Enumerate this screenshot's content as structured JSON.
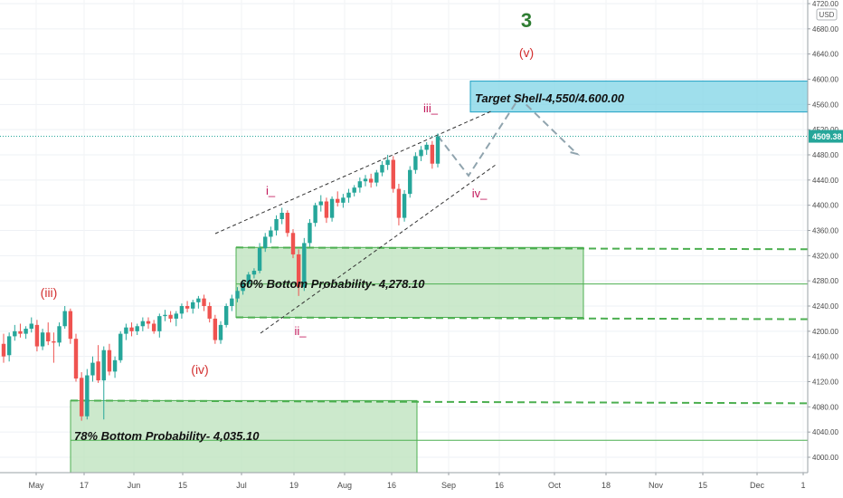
{
  "chart_data": {
    "type": "candlestick",
    "symbol_currency": "USD",
    "y_ticks": [
      4000,
      4040,
      4080,
      4120,
      4160,
      4200,
      4240,
      4280,
      4320,
      4360,
      4400,
      4440,
      4480,
      4520,
      4560,
      4600,
      4640,
      4680,
      4720
    ],
    "y_tick_labels": [
      "4000.00",
      "4040.00",
      "4080.00",
      "4120.00",
      "4160.00",
      "4200.00",
      "4240.00",
      "4280.00",
      "4320.00",
      "4360.00",
      "4400.00",
      "4440.00",
      "4480.00",
      "4520.00",
      "4560.00",
      "4600.00",
      "4640.00",
      "4680.00",
      "4720.00"
    ],
    "x_labels": [
      "May",
      "17",
      "Jun",
      "15",
      "Jul",
      "19",
      "Aug",
      "16",
      "Sep",
      "16",
      "Oct",
      "18",
      "Nov",
      "15",
      "Dec",
      "1"
    ],
    "last_price_label": "4509.38",
    "last_price": 4509.38,
    "wave_labels": {
      "degree_3": "3",
      "wave_v": "(v)",
      "wave_iii_paren": "(iii)",
      "wave_iv_paren": "(iv)",
      "wave_i": "i_",
      "wave_ii": "ii_",
      "wave_iii": "iii_",
      "wave_iv": "iv_"
    },
    "zones": [
      {
        "label": "Target Shell-4,550/4.600.00",
        "high": 4597,
        "low": 4548,
        "color": "#7fd4e6"
      },
      {
        "label": "60% Bottom Probability- 4,278.10",
        "high": 4333,
        "low": 4222,
        "mid": 4275,
        "color": "#bfe3bf"
      },
      {
        "label": "78% Bottom Probability- 4,035.10",
        "high": 4090,
        "low": 3990,
        "mid": 4027,
        "color": "#bfe3bf"
      }
    ],
    "candles": [
      {
        "o": 4180,
        "h": 4196,
        "l": 4150,
        "c": 4160
      },
      {
        "o": 4162,
        "h": 4198,
        "l": 4152,
        "c": 4192
      },
      {
        "o": 4192,
        "h": 4210,
        "l": 4185,
        "c": 4200
      },
      {
        "o": 4200,
        "h": 4212,
        "l": 4190,
        "c": 4196
      },
      {
        "o": 4196,
        "h": 4208,
        "l": 4188,
        "c": 4204
      },
      {
        "o": 4204,
        "h": 4222,
        "l": 4198,
        "c": 4212
      },
      {
        "o": 4210,
        "h": 4218,
        "l": 4168,
        "c": 4176
      },
      {
        "o": 4176,
        "h": 4204,
        "l": 4170,
        "c": 4198
      },
      {
        "o": 4198,
        "h": 4214,
        "l": 4178,
        "c": 4184
      },
      {
        "o": 4184,
        "h": 4198,
        "l": 4150,
        "c": 4182
      },
      {
        "o": 4182,
        "h": 4214,
        "l": 4176,
        "c": 4208
      },
      {
        "o": 4208,
        "h": 4240,
        "l": 4204,
        "c": 4232
      },
      {
        "o": 4232,
        "h": 4236,
        "l": 4180,
        "c": 4188
      },
      {
        "o": 4188,
        "h": 4196,
        "l": 4120,
        "c": 4125
      },
      {
        "o": 4126,
        "h": 4135,
        "l": 4058,
        "c": 4065
      },
      {
        "o": 4065,
        "h": 4140,
        "l": 4060,
        "c": 4130
      },
      {
        "o": 4130,
        "h": 4160,
        "l": 4120,
        "c": 4150
      },
      {
        "o": 4152,
        "h": 4178,
        "l": 4118,
        "c": 4122
      },
      {
        "o": 4122,
        "h": 4176,
        "l": 4060,
        "c": 4170
      },
      {
        "o": 4170,
        "h": 4180,
        "l": 4130,
        "c": 4136
      },
      {
        "o": 4136,
        "h": 4160,
        "l": 4126,
        "c": 4154
      },
      {
        "o": 4154,
        "h": 4200,
        "l": 4150,
        "c": 4196
      },
      {
        "o": 4196,
        "h": 4212,
        "l": 4186,
        "c": 4206
      },
      {
        "o": 4206,
        "h": 4214,
        "l": 4192,
        "c": 4200
      },
      {
        "o": 4200,
        "h": 4212,
        "l": 4194,
        "c": 4208
      },
      {
        "o": 4208,
        "h": 4222,
        "l": 4200,
        "c": 4216
      },
      {
        "o": 4216,
        "h": 4222,
        "l": 4204,
        "c": 4212
      },
      {
        "o": 4212,
        "h": 4218,
        "l": 4196,
        "c": 4200
      },
      {
        "o": 4200,
        "h": 4228,
        "l": 4190,
        "c": 4224
      },
      {
        "o": 4224,
        "h": 4234,
        "l": 4216,
        "c": 4226
      },
      {
        "o": 4226,
        "h": 4232,
        "l": 4214,
        "c": 4220
      },
      {
        "o": 4220,
        "h": 4232,
        "l": 4208,
        "c": 4228
      },
      {
        "o": 4228,
        "h": 4244,
        "l": 4220,
        "c": 4240
      },
      {
        "o": 4240,
        "h": 4248,
        "l": 4230,
        "c": 4236
      },
      {
        "o": 4236,
        "h": 4250,
        "l": 4228,
        "c": 4246
      },
      {
        "o": 4246,
        "h": 4256,
        "l": 4236,
        "c": 4252
      },
      {
        "o": 4252,
        "h": 4258,
        "l": 4232,
        "c": 4240
      },
      {
        "o": 4240,
        "h": 4246,
        "l": 4214,
        "c": 4220
      },
      {
        "o": 4220,
        "h": 4226,
        "l": 4180,
        "c": 4186
      },
      {
        "o": 4186,
        "h": 4216,
        "l": 4180,
        "c": 4210
      },
      {
        "o": 4210,
        "h": 4244,
        "l": 4206,
        "c": 4240
      },
      {
        "o": 4240,
        "h": 4258,
        "l": 4232,
        "c": 4252
      },
      {
        "o": 4252,
        "h": 4270,
        "l": 4246,
        "c": 4264
      },
      {
        "o": 4264,
        "h": 4282,
        "l": 4258,
        "c": 4276
      },
      {
        "o": 4276,
        "h": 4294,
        "l": 4270,
        "c": 4290
      },
      {
        "o": 4290,
        "h": 4300,
        "l": 4284,
        "c": 4296
      },
      {
        "o": 4296,
        "h": 4340,
        "l": 4292,
        "c": 4332
      },
      {
        "o": 4332,
        "h": 4356,
        "l": 4326,
        "c": 4350
      },
      {
        "o": 4350,
        "h": 4366,
        "l": 4340,
        "c": 4360
      },
      {
        "o": 4360,
        "h": 4384,
        "l": 4352,
        "c": 4378
      },
      {
        "o": 4378,
        "h": 4396,
        "l": 4370,
        "c": 4388
      },
      {
        "o": 4388,
        "h": 4392,
        "l": 4350,
        "c": 4356
      },
      {
        "o": 4356,
        "h": 4362,
        "l": 4316,
        "c": 4322
      },
      {
        "o": 4322,
        "h": 4330,
        "l": 4256,
        "c": 4270
      },
      {
        "o": 4270,
        "h": 4348,
        "l": 4264,
        "c": 4340
      },
      {
        "o": 4340,
        "h": 4378,
        "l": 4334,
        "c": 4372
      },
      {
        "o": 4372,
        "h": 4404,
        "l": 4366,
        "c": 4400
      },
      {
        "o": 4400,
        "h": 4416,
        "l": 4390,
        "c": 4406
      },
      {
        "o": 4406,
        "h": 4412,
        "l": 4372,
        "c": 4380
      },
      {
        "o": 4380,
        "h": 4414,
        "l": 4374,
        "c": 4410
      },
      {
        "o": 4410,
        "h": 4422,
        "l": 4398,
        "c": 4404
      },
      {
        "o": 4404,
        "h": 4418,
        "l": 4396,
        "c": 4412
      },
      {
        "o": 4412,
        "h": 4426,
        "l": 4404,
        "c": 4420
      },
      {
        "o": 4420,
        "h": 4432,
        "l": 4414,
        "c": 4428
      },
      {
        "o": 4428,
        "h": 4444,
        "l": 4420,
        "c": 4438
      },
      {
        "o": 4438,
        "h": 4448,
        "l": 4430,
        "c": 4442
      },
      {
        "o": 4442,
        "h": 4450,
        "l": 4428,
        "c": 4436
      },
      {
        "o": 4436,
        "h": 4456,
        "l": 4430,
        "c": 4452
      },
      {
        "o": 4452,
        "h": 4470,
        "l": 4446,
        "c": 4464
      },
      {
        "o": 4464,
        "h": 4480,
        "l": 4456,
        "c": 4472
      },
      {
        "o": 4472,
        "h": 4478,
        "l": 4420,
        "c": 4426
      },
      {
        "o": 4426,
        "h": 4434,
        "l": 4368,
        "c": 4380
      },
      {
        "o": 4380,
        "h": 4424,
        "l": 4374,
        "c": 4418
      },
      {
        "o": 4418,
        "h": 4462,
        "l": 4412,
        "c": 4456
      },
      {
        "o": 4456,
        "h": 4484,
        "l": 4450,
        "c": 4478
      },
      {
        "o": 4478,
        "h": 4494,
        "l": 4470,
        "c": 4488
      },
      {
        "o": 4488,
        "h": 4500,
        "l": 4480,
        "c": 4496
      },
      {
        "o": 4496,
        "h": 4502,
        "l": 4458,
        "c": 4466
      },
      {
        "o": 4466,
        "h": 4514,
        "l": 4460,
        "c": 4509
      }
    ],
    "colors": {
      "up": "#26a69a",
      "down": "#ef5350",
      "price_line": "#26a69a",
      "wave_label": "#d32f2f",
      "wave_label_minor": "#c2185b",
      "degree_label": "#2e7d32",
      "zone_border": "#4caf50",
      "projection": "#90a4ae"
    }
  }
}
